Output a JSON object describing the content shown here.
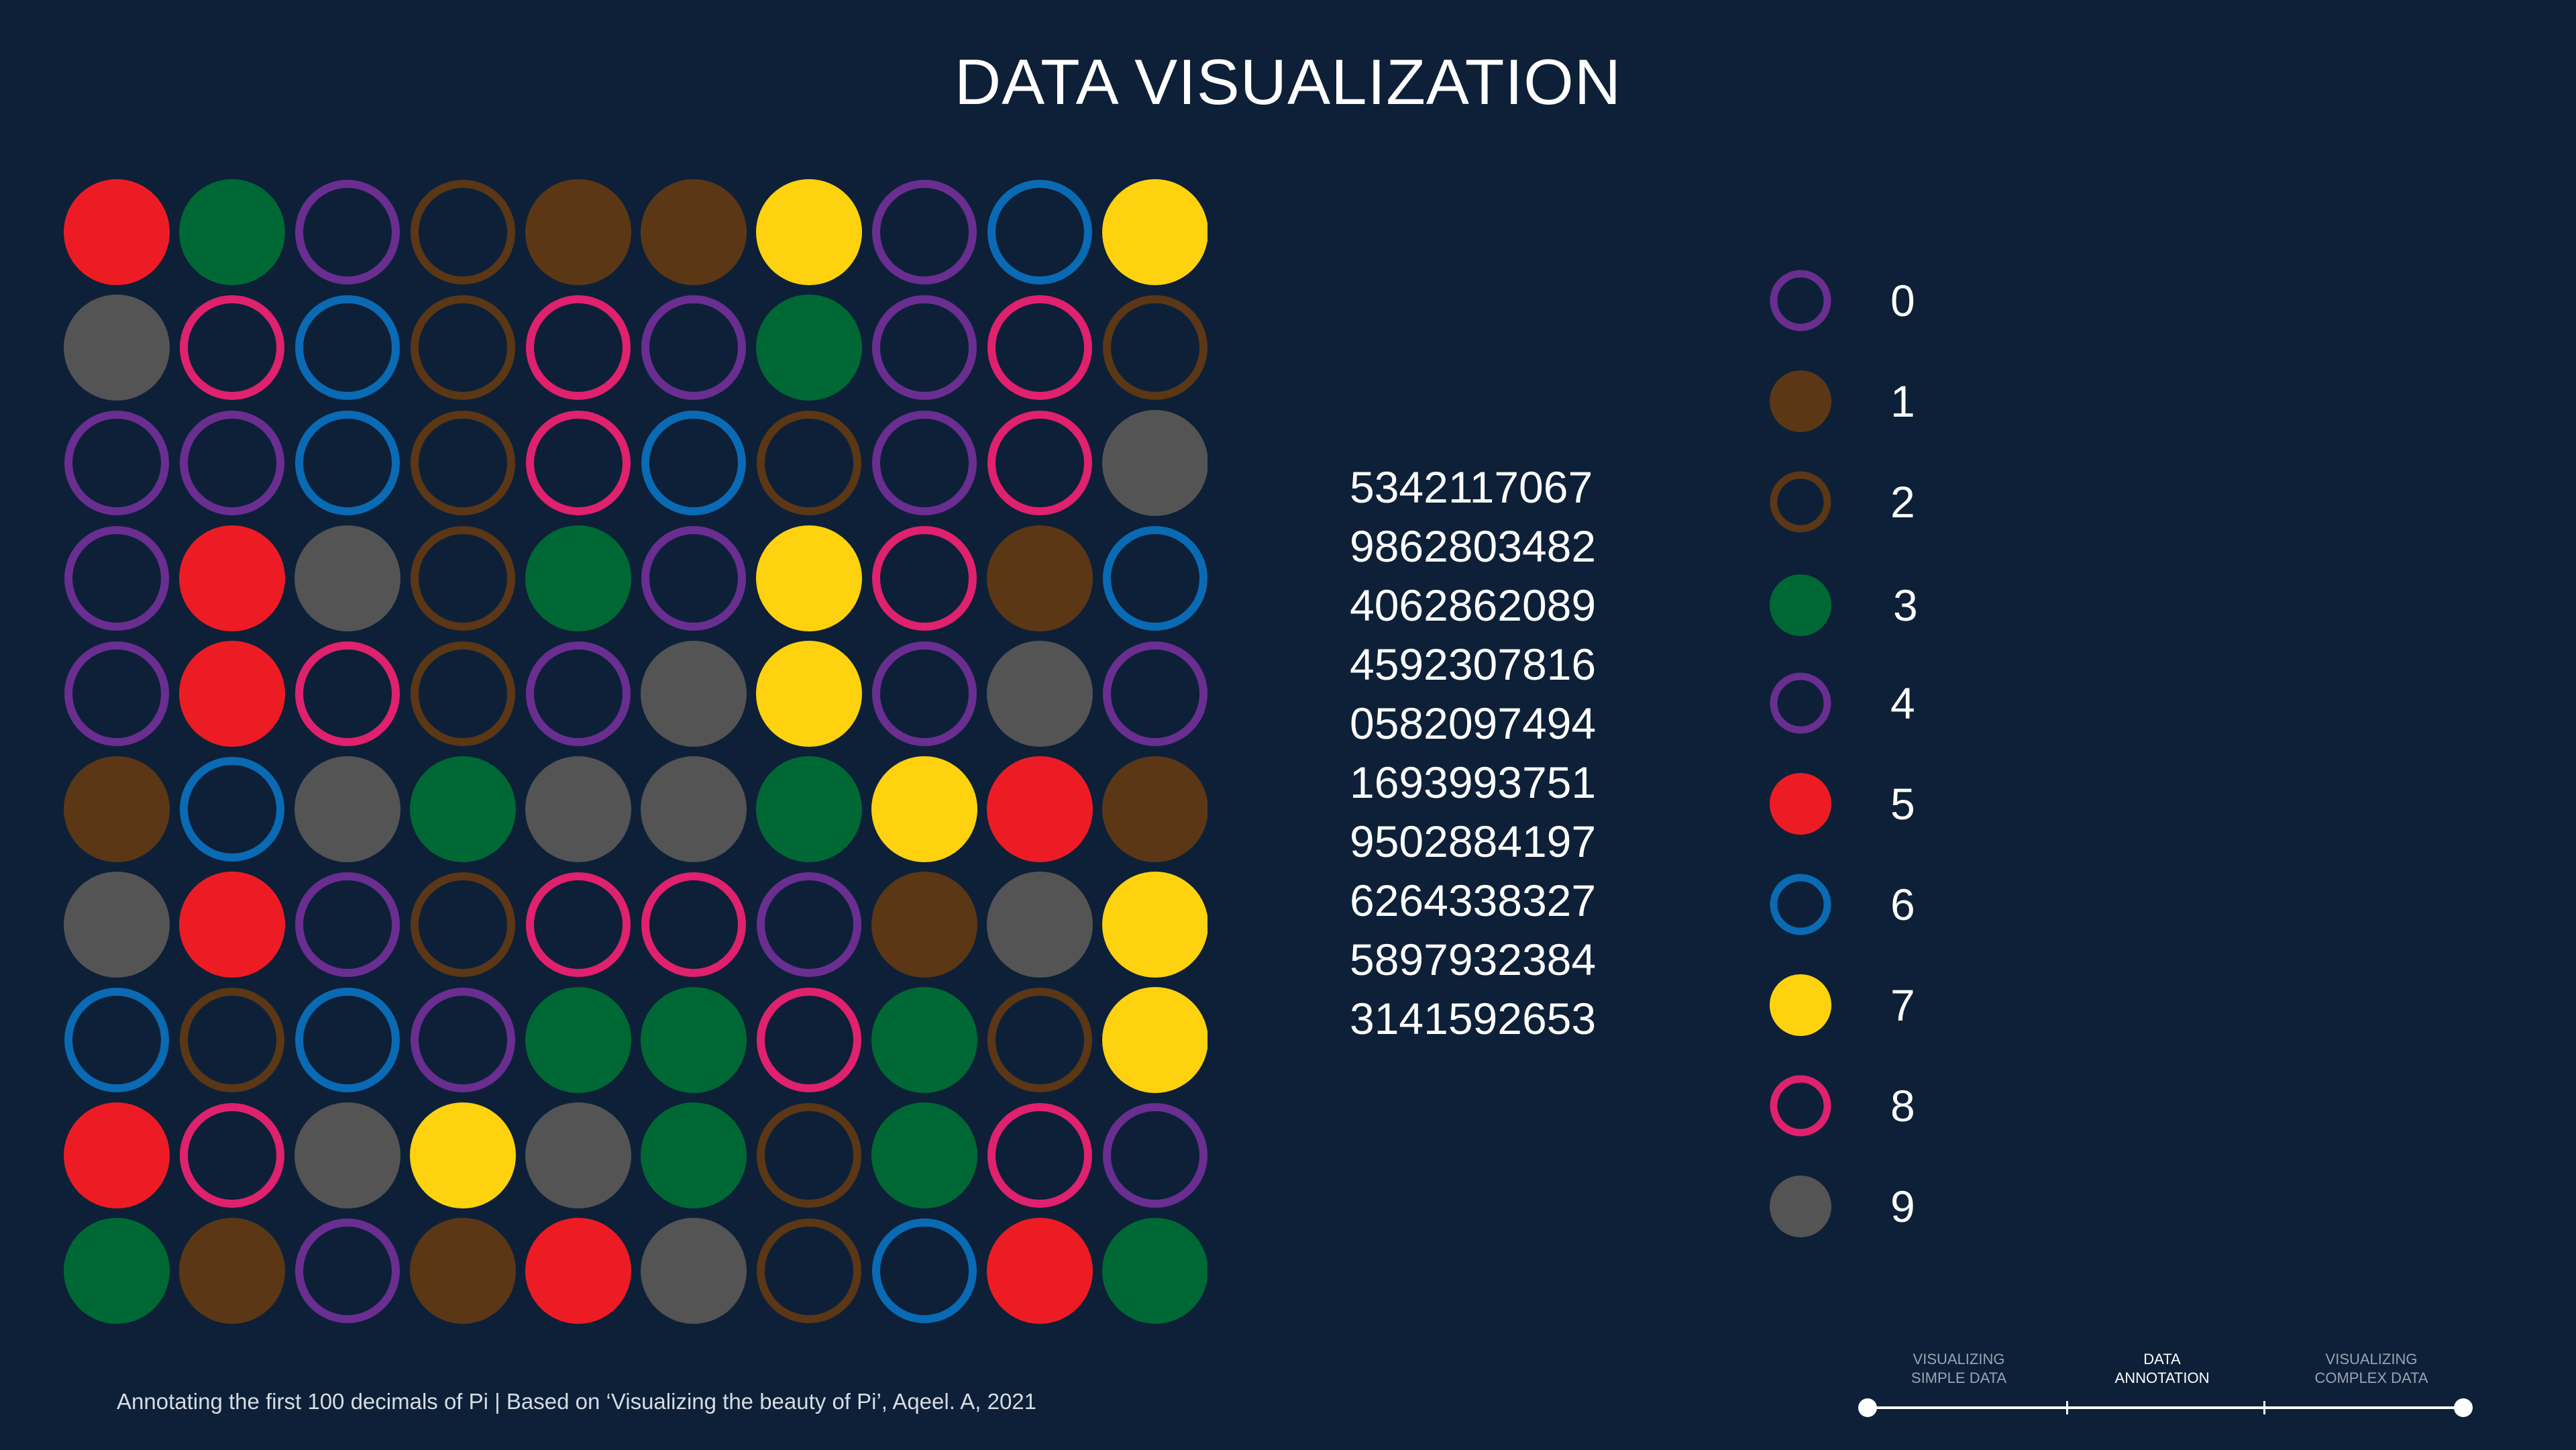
{
  "header": {
    "title": "DATA VISUALIZATION"
  },
  "palette": {
    "background": "#0d2038",
    "0": {
      "color": "#6a2e91",
      "style": "ring"
    },
    "1": {
      "color": "#5b3716",
      "style": "filled"
    },
    "2": {
      "color": "#5b3716",
      "style": "ring"
    },
    "3": {
      "color": "#006834",
      "style": "filled"
    },
    "4": {
      "color": "#6a2e91",
      "style": "ring"
    },
    "5": {
      "color": "#ed1c24",
      "style": "filled"
    },
    "6": {
      "color": "#0a6ab3",
      "style": "ring"
    },
    "7": {
      "color": "#ffd20f",
      "style": "filled"
    },
    "8": {
      "color": "#e0216e",
      "style": "ring"
    },
    "9": {
      "color": "#545454",
      "style": "filled"
    }
  },
  "grid_rows": [
    "5342117067",
    "9862803482",
    "4062862089",
    "4592307816",
    "0582097494",
    "1693993751",
    "9502884197",
    "6264338327",
    "5897932384",
    "3141592653"
  ],
  "digits_block": {
    "lines": [
      "5342117067",
      "9862803482",
      "4062862089",
      "4592307816",
      "0582097494",
      "1693993751",
      "9502884197",
      "6264338327",
      "5897932384",
      "3141592653"
    ]
  },
  "legend": {
    "items": [
      {
        "digit": "0",
        "label": "0"
      },
      {
        "digit": "1",
        "label": "1"
      },
      {
        "digit": "2",
        "label": "2"
      },
      {
        "digit": "3",
        "label": "3"
      },
      {
        "digit": "4",
        "label": "4"
      },
      {
        "digit": "5",
        "label": "5"
      },
      {
        "digit": "6",
        "label": "6"
      },
      {
        "digit": "7",
        "label": "7"
      },
      {
        "digit": "8",
        "label": "8"
      },
      {
        "digit": "9",
        "label": "9"
      }
    ]
  },
  "footer": {
    "caption": "Annotating the first 100 decimals of Pi | Based on ‘Visualizing the beauty of Pi’, Aqeel. A, 2021"
  },
  "timeline": {
    "steps": [
      {
        "line1": "VISUALIZING",
        "line2": "SIMPLE DATA",
        "active": false
      },
      {
        "line1": "DATA",
        "line2": "ANNOTATION",
        "active": true
      },
      {
        "line1": "VISUALIZING",
        "line2": "COMPLEX DATA",
        "active": false
      }
    ]
  }
}
